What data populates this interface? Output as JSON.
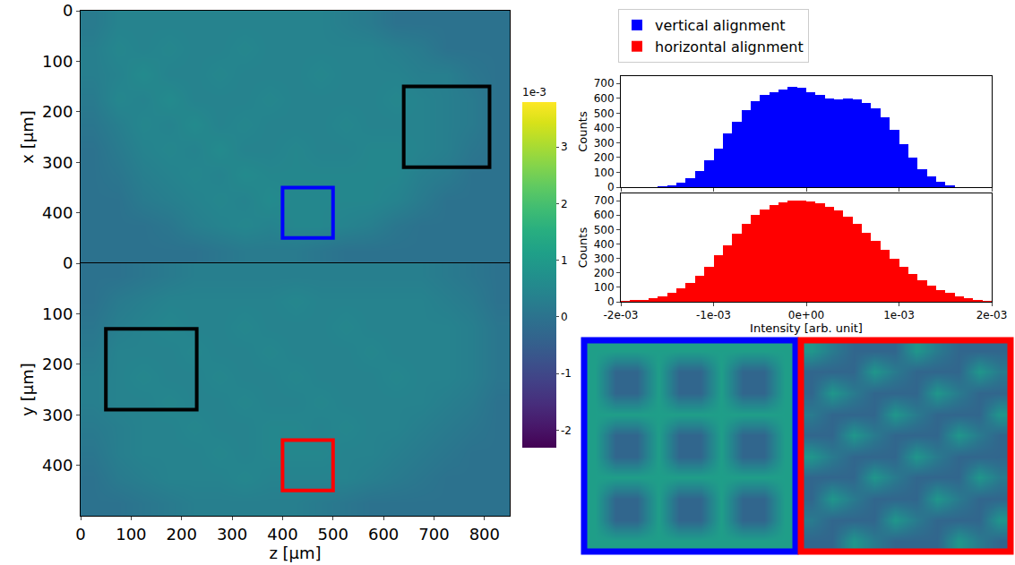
{
  "chart_data": [
    {
      "type": "heatmap",
      "ylabel": "x [μm]",
      "color": "viridis",
      "tick_labels": "y",
      "xlim": [
        0,
        850
      ],
      "ylim": [
        500,
        0
      ],
      "xticks": [
        0,
        100,
        200,
        300,
        400,
        500,
        600,
        700,
        800
      ],
      "yticks": [
        0,
        100,
        200,
        300,
        400
      ],
      "cell_centers_z": [
        25,
        75,
        125,
        175,
        225,
        275,
        325,
        375,
        425,
        475,
        525,
        575,
        625,
        675,
        725,
        775,
        825
      ],
      "cell_centers_y": [
        25,
        75,
        125,
        175,
        225,
        275,
        325,
        375,
        425,
        475
      ],
      "cells": [
        [
          0.2,
          0.4,
          0.4,
          0.4,
          0.4,
          0.4,
          0.4,
          0.4,
          0.4,
          0.4,
          0.3,
          0.2,
          0,
          0,
          0,
          0,
          0
        ],
        [
          0.3,
          0.5,
          0.4,
          0.5,
          0.4,
          0.4,
          0.5,
          0.4,
          0.4,
          0.4,
          0.4,
          0.4,
          0.3,
          0.2,
          0,
          0,
          0
        ],
        [
          0.3,
          0.4,
          0.6,
          0.4,
          0.4,
          0.5,
          0.4,
          0.4,
          0.4,
          0.5,
          0.4,
          0.4,
          0.4,
          0.3,
          0.3,
          0.1,
          0
        ],
        [
          0.2,
          0.5,
          0.4,
          0.6,
          0.4,
          0.4,
          0.4,
          0.5,
          0.4,
          0.4,
          0.4,
          0.4,
          0.5,
          0.4,
          0.3,
          0.2,
          0
        ],
        [
          0.1,
          0.3,
          0.5,
          0.4,
          0.6,
          0.4,
          0.5,
          0.4,
          0.4,
          0.4,
          0.5,
          0.4,
          0.4,
          0.4,
          0.3,
          0.2,
          0
        ],
        [
          0,
          0.2,
          0.4,
          0.5,
          0.4,
          0.6,
          0.4,
          0.4,
          0.5,
          0.4,
          0.4,
          0.5,
          0.5,
          0.4,
          0.3,
          0.1,
          0
        ],
        [
          0,
          0.1,
          0.3,
          0.4,
          0.5,
          0.4,
          0.6,
          0.5,
          0.5,
          0.5,
          0.5,
          0.5,
          0.5,
          0.3,
          0.2,
          0,
          0
        ],
        [
          0,
          0,
          0.2,
          0.3,
          0.4,
          0.5,
          0.4,
          0.6,
          0.5,
          0.5,
          0.5,
          0.5,
          0.4,
          0.2,
          0,
          0,
          0
        ],
        [
          0,
          0,
          0,
          0.1,
          0.3,
          0.4,
          0.5,
          0.4,
          0.5,
          0.5,
          0.4,
          0.3,
          0.1,
          0,
          0,
          0,
          0
        ],
        [
          0,
          0,
          0,
          0,
          0,
          0.1,
          0.2,
          0.2,
          0.2,
          0.1,
          0,
          0,
          0,
          0,
          0,
          0,
          0
        ]
      ],
      "boxes": [
        {
          "color": "black",
          "zlim": [
            640,
            810
          ],
          "ylim": [
            150,
            310
          ]
        },
        {
          "color": "blue",
          "zlim": [
            400,
            500
          ],
          "ylim": [
            350,
            450
          ]
        }
      ],
      "colorbar": {
        "range": [
          -2.3,
          3.8
        ],
        "ticks": [
          -2,
          -1,
          0,
          1,
          2,
          3
        ],
        "label": "1e-3"
      }
    },
    {
      "type": "heatmap",
      "xlabel": "z [μm]",
      "ylabel": "y [μm]",
      "color": "viridis",
      "tick_labels": true,
      "xlim": [
        0,
        850
      ],
      "ylim": [
        500,
        0
      ],
      "xticks": [
        0,
        100,
        200,
        300,
        400,
        500,
        600,
        700,
        800
      ],
      "yticks": [
        0,
        100,
        200,
        300,
        400
      ],
      "cell_centers_z": [
        25,
        75,
        125,
        175,
        225,
        275,
        325,
        375,
        425,
        475,
        525,
        575,
        625,
        675,
        725,
        775,
        825
      ],
      "cell_centers_y": [
        25,
        75,
        125,
        175,
        225,
        275,
        325,
        375,
        425,
        475
      ],
      "cells": [
        [
          0,
          0,
          0.1,
          0.2,
          0.3,
          0.3,
          0.3,
          0.3,
          0.3,
          0.3,
          0.3,
          0.3,
          0.3,
          0.3,
          0.2,
          0.1,
          0
        ],
        [
          0,
          0.2,
          0.3,
          0.4,
          0.4,
          0.4,
          0.4,
          0.4,
          0.5,
          0.4,
          0.4,
          0.4,
          0.4,
          0.4,
          0.3,
          0.2,
          0
        ],
        [
          0.1,
          0.3,
          0.4,
          0.5,
          0.4,
          0.4,
          0.5,
          0.4,
          0.4,
          0.4,
          0.5,
          0.4,
          0.4,
          0.4,
          0.4,
          0.3,
          0.1
        ],
        [
          0.2,
          0.4,
          0.4,
          0.4,
          0.5,
          0.4,
          0.4,
          0.5,
          0.4,
          0.4,
          0.4,
          0.5,
          0.4,
          0.4,
          0.4,
          0.3,
          0.1
        ],
        [
          0.3,
          0.4,
          0.5,
          0.4,
          0.4,
          0.5,
          0.4,
          0.4,
          0.5,
          0.4,
          0.4,
          0.4,
          0.5,
          0.4,
          0.4,
          0.3,
          0.1
        ],
        [
          0.3,
          0.4,
          0.4,
          0.5,
          0.4,
          0.4,
          0.5,
          0.4,
          0.4,
          0.5,
          0.4,
          0.4,
          0.4,
          0.4,
          0.3,
          0.2,
          0
        ],
        [
          0.2,
          0.3,
          0.4,
          0.4,
          0.5,
          0.4,
          0.4,
          0.5,
          0.5,
          0.4,
          0.5,
          0.4,
          0.4,
          0.3,
          0.2,
          0.1,
          0
        ],
        [
          0.1,
          0.3,
          0.4,
          0.4,
          0.4,
          0.5,
          0.4,
          0.5,
          0.5,
          0.5,
          0.4,
          0.4,
          0.3,
          0.2,
          0.1,
          0,
          0
        ],
        [
          0,
          0.2,
          0.3,
          0.4,
          0.4,
          0.4,
          0.5,
          0.4,
          0.4,
          0.4,
          0.4,
          0.3,
          0.2,
          0.1,
          0,
          0,
          0
        ],
        [
          0,
          0,
          0.1,
          0.2,
          0.3,
          0.3,
          0.3,
          0.3,
          0.3,
          0.2,
          0.1,
          0,
          0,
          0,
          0,
          0,
          0
        ]
      ],
      "boxes": [
        {
          "color": "black",
          "zlim": [
            50,
            230
          ],
          "ylim": [
            130,
            290
          ]
        },
        {
          "color": "red",
          "zlim": [
            400,
            500
          ],
          "ylim": [
            350,
            450
          ]
        }
      ]
    },
    {
      "type": "histogram",
      "ylabel": "Counts",
      "tick_labels": "y",
      "legend": "top",
      "xlim": [
        -0.002,
        0.002
      ],
      "ylim": [
        0,
        750
      ],
      "xticks": [
        {
          "value": -0.002,
          "label": "-2e-03"
        },
        {
          "value": -0.001,
          "label": "-1e-03"
        },
        {
          "value": 0,
          "label": "0e+00"
        },
        {
          "value": 0.001,
          "label": "1e-03"
        },
        {
          "value": 0.002,
          "label": "2e-03"
        }
      ],
      "yticks": [
        0,
        100,
        200,
        300,
        400,
        500,
        600,
        700
      ],
      "series": [
        {
          "name": "vertical alignment",
          "color": "#0000ff",
          "bins": [
            -0.002,
            -0.0019,
            -0.0018,
            -0.0017,
            -0.0016,
            -0.0015,
            -0.0014,
            -0.0013,
            -0.0012,
            -0.0011,
            -0.001,
            -0.0009,
            -0.0008,
            -0.0007,
            -0.0006,
            -0.0005,
            -0.0004,
            -0.0003,
            -0.0002,
            -0.0001,
            0,
            0.0001,
            0.0002,
            0.0003,
            0.0004,
            0.0005,
            0.0006,
            0.0007,
            0.0008,
            0.0009,
            0.001,
            0.0011,
            0.0012,
            0.0013,
            0.0014,
            0.0015,
            0.0016,
            0.0017,
            0.0018,
            0.0019,
            0.002
          ],
          "counts": [
            0,
            0,
            0,
            2,
            5,
            15,
            30,
            60,
            110,
            180,
            260,
            360,
            440,
            520,
            580,
            620,
            640,
            660,
            680,
            670,
            640,
            620,
            600,
            590,
            600,
            590,
            570,
            530,
            470,
            390,
            290,
            200,
            120,
            70,
            35,
            12,
            3,
            0,
            0,
            0
          ]
        }
      ]
    },
    {
      "type": "histogram",
      "xlabel": "Intensity [arb. unit]",
      "ylabel": "Counts",
      "tick_labels": true,
      "legend": "top",
      "xlim": [
        -0.002,
        0.002
      ],
      "ylim": [
        0,
        750
      ],
      "xticks": [
        {
          "value": -0.002,
          "label": "-2e-03"
        },
        {
          "value": -0.001,
          "label": "-1e-03"
        },
        {
          "value": 0,
          "label": "0e+00"
        },
        {
          "value": 0.001,
          "label": "1e-03"
        },
        {
          "value": 0.002,
          "label": "2e-03"
        }
      ],
      "yticks": [
        0,
        100,
        200,
        300,
        400,
        500,
        600,
        700
      ],
      "series": [
        {
          "name": "horizontal alignment",
          "color": "#ff0000",
          "bins": [
            -0.002,
            -0.0019,
            -0.0018,
            -0.0017,
            -0.0016,
            -0.0015,
            -0.0014,
            -0.0013,
            -0.0012,
            -0.0011,
            -0.001,
            -0.0009,
            -0.0008,
            -0.0007,
            -0.0006,
            -0.0005,
            -0.0004,
            -0.0003,
            -0.0002,
            -0.0001,
            0,
            0.0001,
            0.0002,
            0.0003,
            0.0004,
            0.0005,
            0.0006,
            0.0007,
            0.0008,
            0.0009,
            0.001,
            0.0011,
            0.0012,
            0.0013,
            0.0014,
            0.0015,
            0.0016,
            0.0017,
            0.0018,
            0.0019,
            0.002
          ],
          "counts": [
            5,
            10,
            15,
            25,
            40,
            60,
            90,
            130,
            180,
            240,
            320,
            390,
            470,
            540,
            600,
            640,
            670,
            690,
            700,
            700,
            695,
            680,
            660,
            630,
            590,
            540,
            480,
            420,
            360,
            300,
            240,
            190,
            150,
            110,
            80,
            60,
            40,
            25,
            15,
            8
          ]
        }
      ]
    },
    {
      "type": "heatmap",
      "color": "blue",
      "tick_labels": false,
      "xlim": [
        400,
        500
      ],
      "ylim": [
        450,
        350
      ],
      "cell_centers_z": [
        405,
        415,
        425,
        435,
        445,
        455,
        465,
        475,
        485,
        495
      ],
      "cell_centers_y": [
        355,
        365,
        375,
        385,
        395,
        405,
        415,
        425,
        435,
        445
      ],
      "cells": [
        [
          1.1,
          1.1,
          1.1,
          1.1,
          1.1,
          1.1,
          1.1,
          1.1,
          1.1,
          1.1
        ],
        [
          1.1,
          -0.3,
          -0.3,
          1.1,
          -0.3,
          -0.3,
          1.1,
          -0.3,
          -0.3,
          1.1
        ],
        [
          1.1,
          -0.3,
          -0.3,
          1.1,
          -0.3,
          -0.3,
          1.1,
          -0.3,
          -0.3,
          1.1
        ],
        [
          1.1,
          1.1,
          1.1,
          1.1,
          1.1,
          1.1,
          1.1,
          1.1,
          1.1,
          1.1
        ],
        [
          1.1,
          -0.3,
          -0.3,
          1.1,
          -0.3,
          -0.3,
          1.1,
          -0.3,
          -0.3,
          1.1
        ],
        [
          1.1,
          -0.3,
          -0.3,
          1.1,
          -0.3,
          -0.3,
          1.1,
          -0.3,
          -0.3,
          1.1
        ],
        [
          1.1,
          1.1,
          1.1,
          1.1,
          1.1,
          1.1,
          1.1,
          1.1,
          1.1,
          1.1
        ],
        [
          1.1,
          -0.3,
          -0.3,
          1.1,
          -0.3,
          -0.3,
          1.1,
          -0.3,
          -0.3,
          1.1
        ],
        [
          1.1,
          -0.3,
          -0.3,
          1.1,
          -0.3,
          -0.3,
          1.1,
          -0.3,
          -0.3,
          1.1
        ],
        [
          1.1,
          1.1,
          1.1,
          1.1,
          1.1,
          1.1,
          1.1,
          1.1,
          1.1,
          1.1
        ]
      ]
    },
    {
      "type": "heatmap",
      "color": "red",
      "tick_labels": false,
      "xlim": [
        400,
        500
      ],
      "ylim": [
        450,
        350
      ],
      "cell_centers_z": [
        405,
        415,
        425,
        435,
        445,
        455,
        465,
        475,
        485,
        495
      ],
      "cell_centers_y": [
        355,
        365,
        375,
        385,
        395,
        405,
        415,
        425,
        435,
        445
      ],
      "cells": [
        [
          0.9,
          0.2,
          -0.3,
          -0.3,
          -0.3,
          0.9,
          0.2,
          -0.3,
          -0.3,
          -0.3
        ],
        [
          -0.3,
          -0.3,
          -0.3,
          0.9,
          0.2,
          -0.3,
          -0.3,
          -0.3,
          0.9,
          0.2
        ],
        [
          -0.3,
          0.9,
          0.2,
          -0.3,
          -0.3,
          -0.3,
          0.9,
          0.2,
          -0.3,
          -0.3
        ],
        [
          0.2,
          -0.3,
          -0.3,
          -0.3,
          0.9,
          0.2,
          -0.3,
          -0.3,
          -0.3,
          0.9
        ],
        [
          -0.3,
          -0.3,
          0.9,
          0.2,
          -0.3,
          -0.3,
          -0.3,
          0.9,
          0.2,
          -0.3
        ],
        [
          0.9,
          0.2,
          -0.3,
          -0.3,
          -0.3,
          0.9,
          0.2,
          -0.3,
          -0.3,
          -0.3
        ],
        [
          -0.3,
          -0.3,
          -0.3,
          0.9,
          0.2,
          -0.3,
          -0.3,
          -0.3,
          0.9,
          0.2
        ],
        [
          -0.3,
          0.9,
          0.2,
          -0.3,
          -0.3,
          -0.3,
          0.9,
          0.2,
          -0.3,
          -0.3
        ],
        [
          0.2,
          -0.3,
          -0.3,
          -0.3,
          0.9,
          0.2,
          -0.3,
          -0.3,
          -0.3,
          0.9
        ],
        [
          -0.3,
          -0.3,
          0.9,
          0.2,
          -0.3,
          -0.3,
          -0.3,
          0.9,
          0.2,
          -0.3
        ]
      ]
    }
  ]
}
